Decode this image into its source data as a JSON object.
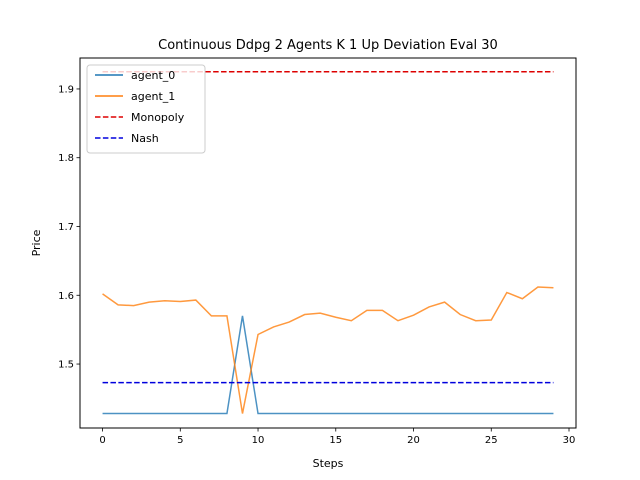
{
  "chart_data": {
    "type": "line",
    "title": "Continuous Ddpg 2 Agents K 1 Up Deviation Eval 30",
    "xlabel": "Steps",
    "ylabel": "Price",
    "xlim": [
      -1.45,
      30.45
    ],
    "ylim": [
      1.407,
      1.945
    ],
    "xticks": [
      0,
      5,
      10,
      15,
      20,
      25,
      30
    ],
    "yticks": [
      1.5,
      1.6,
      1.7,
      1.8,
      1.9
    ],
    "x": [
      0,
      1,
      2,
      3,
      4,
      5,
      6,
      7,
      8,
      9,
      10,
      11,
      12,
      13,
      14,
      15,
      16,
      17,
      18,
      19,
      20,
      21,
      22,
      23,
      24,
      25,
      26,
      27,
      28,
      29
    ],
    "series": [
      {
        "name": "agent_0",
        "color": "#1f77b4",
        "style": "solid",
        "values": [
          1.428,
          1.428,
          1.428,
          1.428,
          1.428,
          1.428,
          1.428,
          1.428,
          1.428,
          1.57,
          1.428,
          1.428,
          1.428,
          1.428,
          1.428,
          1.428,
          1.428,
          1.428,
          1.428,
          1.428,
          1.428,
          1.428,
          1.428,
          1.428,
          1.428,
          1.428,
          1.428,
          1.428,
          1.428,
          1.428
        ]
      },
      {
        "name": "agent_1",
        "color": "#ff7f0e",
        "style": "solid",
        "values": [
          1.602,
          1.586,
          1.585,
          1.59,
          1.592,
          1.591,
          1.593,
          1.57,
          1.57,
          1.428,
          1.543,
          1.554,
          1.561,
          1.572,
          1.574,
          1.568,
          1.563,
          1.578,
          1.578,
          1.563,
          1.571,
          1.583,
          1.59,
          1.572,
          1.563,
          1.564,
          1.604,
          1.595,
          1.612,
          1.611
        ]
      },
      {
        "name": "Monopoly",
        "color": "#dd0000",
        "style": "dashed",
        "values": [
          1.925,
          1.925,
          1.925,
          1.925,
          1.925,
          1.925,
          1.925,
          1.925,
          1.925,
          1.925,
          1.925,
          1.925,
          1.925,
          1.925,
          1.925,
          1.925,
          1.925,
          1.925,
          1.925,
          1.925,
          1.925,
          1.925,
          1.925,
          1.925,
          1.925,
          1.925,
          1.925,
          1.925,
          1.925,
          1.925
        ]
      },
      {
        "name": "Nash",
        "color": "#0000dd",
        "style": "dashed",
        "values": [
          1.473,
          1.473,
          1.473,
          1.473,
          1.473,
          1.473,
          1.473,
          1.473,
          1.473,
          1.473,
          1.473,
          1.473,
          1.473,
          1.473,
          1.473,
          1.473,
          1.473,
          1.473,
          1.473,
          1.473,
          1.473,
          1.473,
          1.473,
          1.473,
          1.473,
          1.473,
          1.473,
          1.473,
          1.473,
          1.473
        ]
      }
    ],
    "grid": false,
    "legend_position": "top-left"
  }
}
